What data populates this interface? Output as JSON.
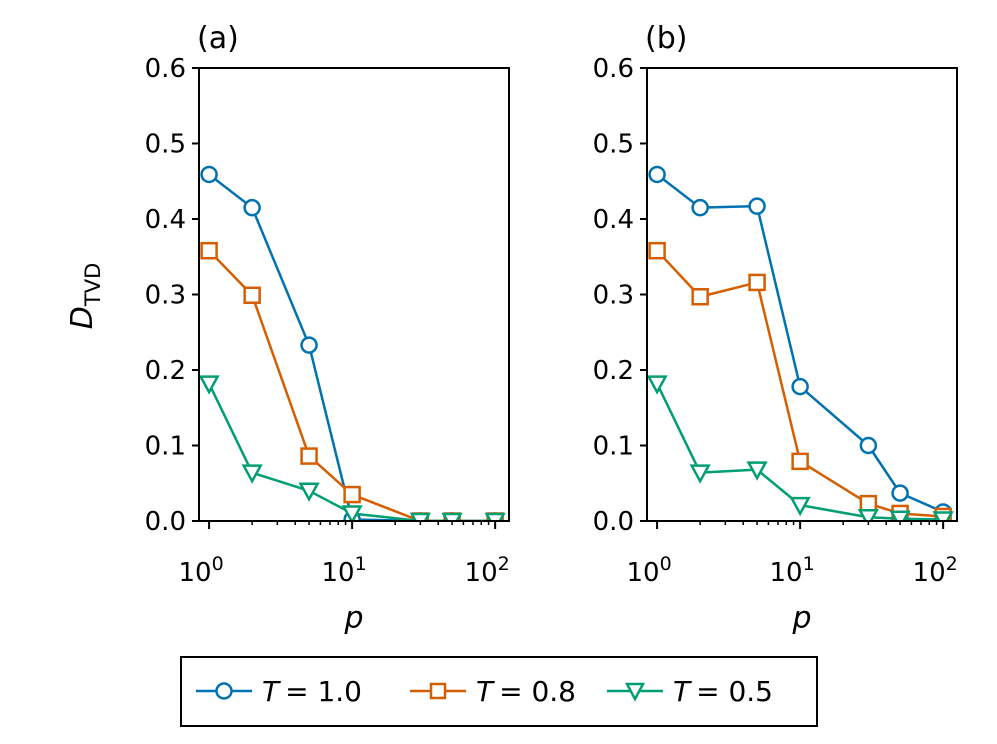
{
  "figure": {
    "ylabel_main": "D",
    "ylabel_sub": "TVD",
    "xlabel": "p"
  },
  "legend": {
    "items": [
      {
        "var": "T",
        "eq": "= 1.0",
        "color": "#0072B2",
        "marker": "circle"
      },
      {
        "var": "T",
        "eq": "= 0.8",
        "color": "#D55E00",
        "marker": "square"
      },
      {
        "var": "T",
        "eq": "= 0.5",
        "color": "#009E73",
        "marker": "triangle-down"
      }
    ]
  },
  "chart_data": [
    {
      "type": "line",
      "title": "(a)",
      "xlabel": "p",
      "ylabel": "D_TVD",
      "xscale": "log",
      "xlim": [
        0.85,
        125
      ],
      "ylim": [
        0.0,
        0.6
      ],
      "y_ticks": [
        "0.0",
        "0.1",
        "0.2",
        "0.3",
        "0.4",
        "0.5",
        "0.6"
      ],
      "x_ticks": [
        {
          "base": "10",
          "exp": "0"
        },
        {
          "base": "10",
          "exp": "1"
        },
        {
          "base": "10",
          "exp": "2"
        }
      ],
      "series": [
        {
          "name": "T = 1.0",
          "x": [
            1,
            2,
            5,
            10,
            30,
            50,
            100
          ],
          "values": [
            0.459,
            0.415,
            0.233,
            0.002,
            0.0,
            0.0,
            0.0
          ]
        },
        {
          "name": "T = 0.8",
          "x": [
            1,
            2,
            5,
            10,
            30,
            50,
            100
          ],
          "values": [
            0.358,
            0.299,
            0.086,
            0.035,
            0.0,
            0.0,
            0.0
          ]
        },
        {
          "name": "T = 0.5",
          "x": [
            1,
            2,
            5,
            10,
            30,
            50,
            100
          ],
          "values": [
            0.182,
            0.064,
            0.04,
            0.01,
            0.0,
            0.0,
            0.0
          ]
        }
      ]
    },
    {
      "type": "line",
      "title": "(b)",
      "xlabel": "p",
      "ylabel": "D_TVD",
      "xscale": "log",
      "xlim": [
        0.85,
        125
      ],
      "ylim": [
        0.0,
        0.6
      ],
      "y_ticks": [
        "0.0",
        "0.1",
        "0.2",
        "0.3",
        "0.4",
        "0.5",
        "0.6"
      ],
      "x_ticks": [
        {
          "base": "10",
          "exp": "0"
        },
        {
          "base": "10",
          "exp": "1"
        },
        {
          "base": "10",
          "exp": "2"
        }
      ],
      "series": [
        {
          "name": "T = 1.0",
          "x": [
            1,
            2,
            5,
            10,
            30,
            50,
            100
          ],
          "values": [
            0.459,
            0.415,
            0.417,
            0.178,
            0.1,
            0.037,
            0.012
          ]
        },
        {
          "name": "T = 0.8",
          "x": [
            1,
            2,
            5,
            10,
            30,
            50,
            100
          ],
          "values": [
            0.358,
            0.297,
            0.316,
            0.079,
            0.023,
            0.01,
            0.006
          ]
        },
        {
          "name": "T = 0.5",
          "x": [
            1,
            2,
            5,
            10,
            30,
            50,
            100
          ],
          "values": [
            0.182,
            0.064,
            0.068,
            0.021,
            0.005,
            0.003,
            0.002
          ]
        }
      ]
    }
  ]
}
